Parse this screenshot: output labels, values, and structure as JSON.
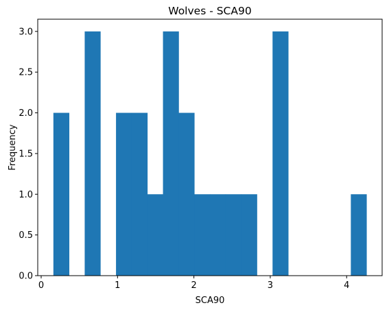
{
  "chart_data": {
    "type": "bar",
    "title": "Wolves - SCA90",
    "xlabel": "SCA90",
    "ylabel": "Frequency",
    "bin_edges": [
      0.16,
      0.365,
      0.57,
      0.775,
      0.98,
      1.185,
      1.39,
      1.595,
      1.8,
      2.005,
      2.21,
      2.415,
      2.62,
      2.825,
      3.03,
      3.235,
      3.44,
      3.645,
      3.85,
      4.055,
      4.26
    ],
    "values": [
      2,
      0,
      3,
      0,
      2,
      2,
      1,
      3,
      2,
      1,
      1,
      1,
      1,
      0,
      3,
      0,
      0,
      0,
      0,
      1
    ],
    "xlim": [
      -0.045,
      4.465
    ],
    "ylim": [
      0,
      3.15
    ],
    "xticks": [
      0,
      1,
      2,
      3,
      4
    ],
    "yticks": [
      0.0,
      0.5,
      1.0,
      1.5,
      2.0,
      2.5,
      3.0
    ],
    "xtick_labels": [
      "0",
      "1",
      "2",
      "3",
      "4"
    ],
    "ytick_labels": [
      "0.0",
      "0.5",
      "1.0",
      "1.5",
      "2.0",
      "2.5",
      "3.0"
    ],
    "bar_color": "#1f77b4",
    "grid": false,
    "legend": "none"
  }
}
